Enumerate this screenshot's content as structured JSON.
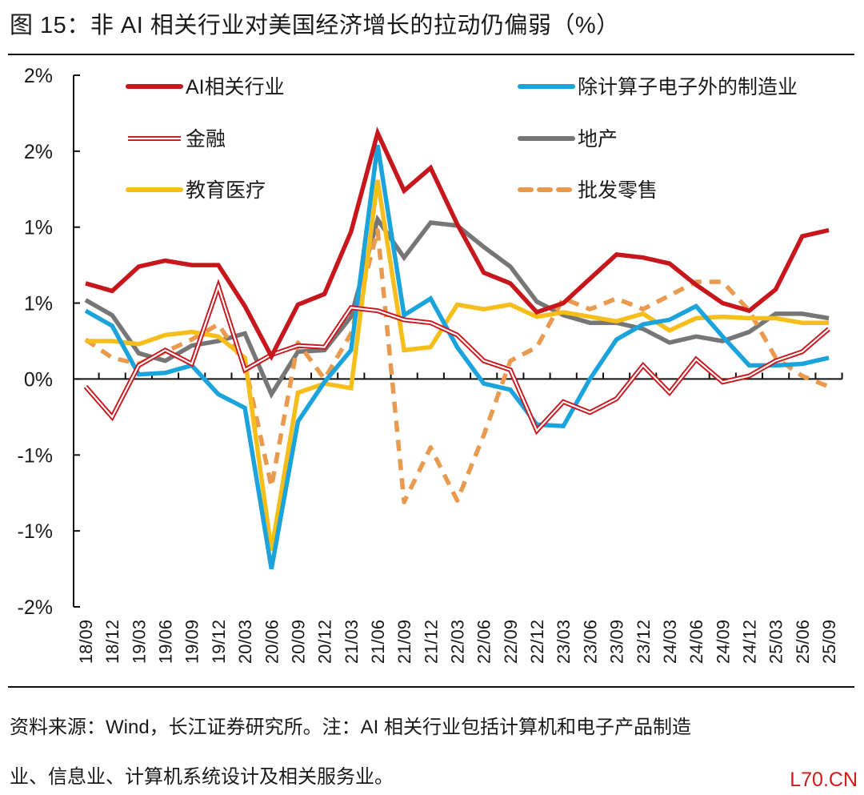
{
  "title": "图 15：非 AI 相关行业对美国经济增长的拉动仍偏弱（%）",
  "footer": {
    "line1": "资料来源：Wind，长江证券研究所。注：AI 相关行业包括计算机和电子产品制造",
    "line2": "业、信息业、计算机系统设计及相关服务业。"
  },
  "watermark": "L70.CN",
  "chart_data": {
    "type": "line",
    "title": "非 AI 相关行业对美国经济增长的拉动仍偏弱（%）",
    "xlabel": "",
    "ylabel": "",
    "ylim": [
      -1.5,
      2.0
    ],
    "yticks": [
      2.0,
      1.5,
      1.0,
      0.5,
      0.0,
      -0.5,
      -1.0,
      -1.5
    ],
    "ytick_labels": [
      "2%",
      "2%",
      "1%",
      "1%",
      "0%",
      "-1%",
      "-1%",
      "-2%"
    ],
    "grid": false,
    "legend_position": "top",
    "x": [
      "18/09",
      "18/12",
      "19/03",
      "19/06",
      "19/09",
      "19/12",
      "20/03",
      "20/06",
      "20/09",
      "20/12",
      "21/03",
      "21/06",
      "21/09",
      "21/12",
      "22/03",
      "22/06",
      "22/09",
      "22/12",
      "23/03",
      "23/06",
      "23/09",
      "23/12",
      "24/03",
      "24/06",
      "24/09",
      "24/12",
      "25/03",
      "25/06",
      "25/09"
    ],
    "series": [
      {
        "name": "AI相关行业",
        "color": "#c8161d",
        "style": "solid",
        "values": [
          0.63,
          0.58,
          0.74,
          0.78,
          0.75,
          0.75,
          0.48,
          0.15,
          0.49,
          0.56,
          0.97,
          1.62,
          1.24,
          1.39,
          1.02,
          0.7,
          0.63,
          0.44,
          0.5,
          0.66,
          0.82,
          0.8,
          0.76,
          0.62,
          0.5,
          0.45,
          0.59,
          0.94,
          0.98
        ]
      },
      {
        "name": "除计算子电子外的制造业",
        "color": "#1ba4dc",
        "style": "solid",
        "values": [
          0.45,
          0.35,
          0.03,
          0.04,
          0.09,
          -0.1,
          -0.19,
          -1.25,
          -0.28,
          -0.02,
          0.19,
          1.54,
          0.42,
          0.53,
          0.21,
          -0.03,
          -0.07,
          -0.3,
          -0.31,
          0.0,
          0.26,
          0.36,
          0.39,
          0.48,
          0.28,
          0.09,
          0.09,
          0.1,
          0.14
        ]
      },
      {
        "name": "金融",
        "color": "#c8161d",
        "style": "double",
        "values": [
          -0.05,
          -0.25,
          0.09,
          0.19,
          0.1,
          0.61,
          0.06,
          0.16,
          0.22,
          0.21,
          0.47,
          0.45,
          0.39,
          0.37,
          0.29,
          0.12,
          0.06,
          -0.34,
          -0.15,
          -0.22,
          -0.13,
          0.09,
          -0.09,
          0.13,
          -0.02,
          0.02,
          0.12,
          0.18,
          0.33
        ]
      },
      {
        "name": "地产",
        "color": "#767676",
        "style": "solid",
        "values": [
          0.52,
          0.42,
          0.17,
          0.12,
          0.22,
          0.25,
          0.3,
          -0.1,
          0.18,
          0.19,
          0.41,
          1.05,
          0.8,
          1.03,
          1.01,
          0.87,
          0.74,
          0.51,
          0.42,
          0.37,
          0.37,
          0.33,
          0.24,
          0.28,
          0.25,
          0.31,
          0.43,
          0.43,
          0.4
        ]
      },
      {
        "name": "教育医疗",
        "color": "#f5be1a",
        "style": "solid",
        "values": [
          0.25,
          0.25,
          0.23,
          0.29,
          0.31,
          0.28,
          0.14,
          -1.13,
          -0.09,
          -0.03,
          -0.06,
          1.31,
          0.19,
          0.21,
          0.49,
          0.46,
          0.49,
          0.41,
          0.44,
          0.41,
          0.38,
          0.43,
          0.32,
          0.4,
          0.41,
          0.4,
          0.4,
          0.37,
          0.37
        ]
      },
      {
        "name": "批发零售",
        "color": "#e99a4e",
        "style": "dashed",
        "values": [
          0.26,
          0.14,
          0.1,
          0.18,
          0.26,
          0.36,
          0.1,
          -0.71,
          0.24,
          0.0,
          0.3,
          0.98,
          -0.81,
          -0.45,
          -0.8,
          -0.37,
          0.12,
          0.21,
          0.53,
          0.46,
          0.53,
          0.46,
          0.55,
          0.64,
          0.64,
          0.45,
          0.14,
          0.02,
          -0.05
        ]
      }
    ],
    "legend": [
      {
        "name": "AI相关行业",
        "column": "left",
        "row": 0
      },
      {
        "name": "除计算子电子外的制造业",
        "column": "right",
        "row": 0
      },
      {
        "name": "金融",
        "column": "left",
        "row": 1
      },
      {
        "name": "地产",
        "column": "right",
        "row": 1
      },
      {
        "name": "教育医疗",
        "column": "left",
        "row": 2
      },
      {
        "name": "批发零售",
        "column": "right",
        "row": 2
      }
    ]
  }
}
